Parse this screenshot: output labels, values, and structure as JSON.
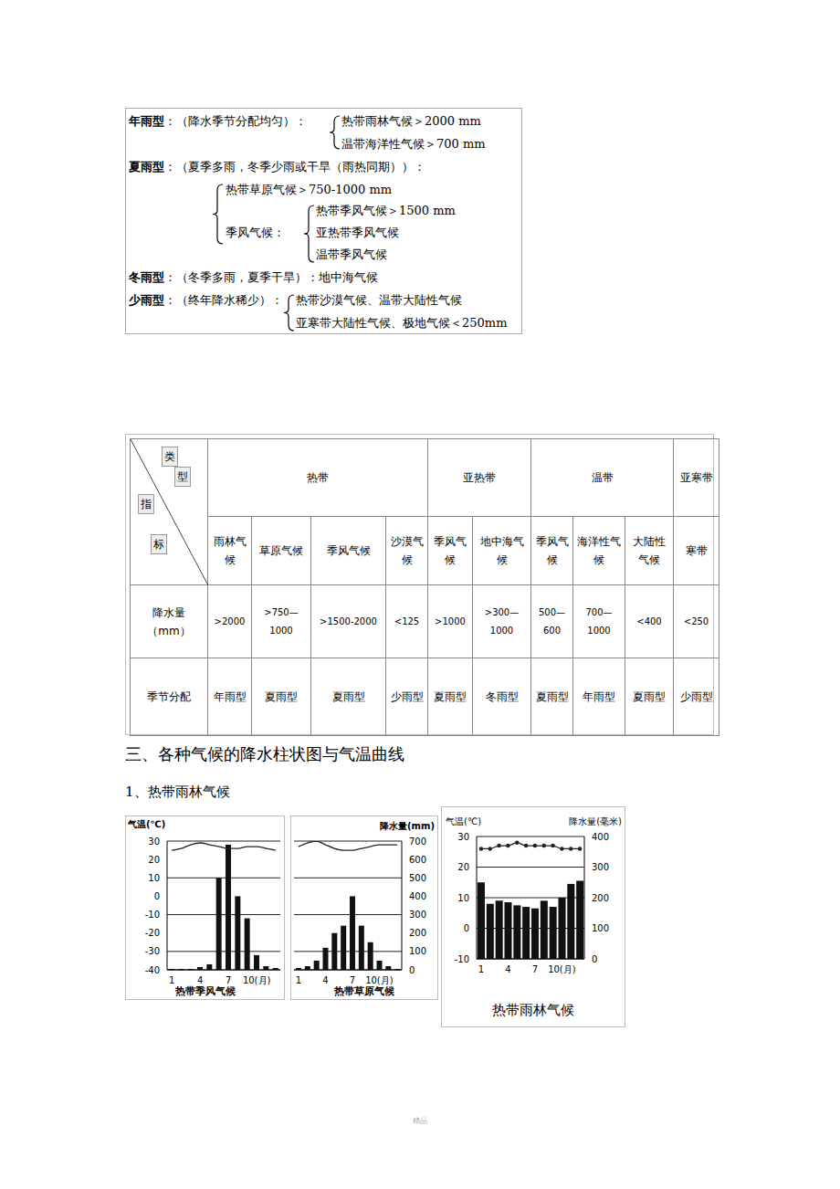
{
  "rain_types": [
    {
      "name": "年雨型",
      "desc": "：（降水季节分配均匀）：",
      "items": [
        "热带雨林气候＞2000 mm",
        "温带海洋性气候＞700 mm"
      ]
    },
    {
      "name": "夏雨型",
      "desc": "：（夏季多雨，冬季少雨或干旱（雨热同期））：",
      "items": [
        "热带草原气候＞750-1000 mm",
        {
          "name": "季风气候：",
          "items": [
            "热带季风气候＞1500 mm",
            "亚热带季风气候",
            "温带季风气候"
          ]
        }
      ]
    },
    {
      "name": "冬雨型",
      "desc": "：（冬季多雨，夏季干旱）：地中海气候",
      "items": []
    },
    {
      "name": "少雨型",
      "desc": "：（终年降水稀少）：",
      "items": [
        "热带沙漠气候、温带大陆性气候",
        "亚寒带大陆性气候、极地气候＜250mm"
      ]
    }
  ],
  "table": {
    "corner": {
      "top": "类型",
      "bottom": "指标"
    },
    "groups": [
      {
        "name": "热带",
        "columns": [
          "雨林气候",
          "草原气候",
          "季风气候",
          "沙漠气候"
        ]
      },
      {
        "name": "亚热带",
        "columns": [
          "季风气候",
          "地中海气候"
        ]
      },
      {
        "name": "温带",
        "columns": [
          "季风气候",
          "海洋性气候",
          "大陆性气候"
        ]
      },
      {
        "name": "亚寒带",
        "columns": [
          "寒带"
        ]
      }
    ],
    "rows": [
      {
        "label": "降水量（mm）",
        "cells": [
          ">2000",
          ">750—1000",
          ">1500-2000",
          "<125",
          ">1000",
          ">300—1000",
          "500—600",
          "700—1000",
          "<400",
          "<250"
        ]
      },
      {
        "label": "季节分配",
        "cells": [
          "年雨型",
          "夏雨型",
          "夏雨型",
          "少雨型",
          "夏雨型",
          "冬雨型",
          "夏雨型",
          "年雨型",
          "夏雨型",
          "少雨型"
        ]
      }
    ]
  },
  "heading": "三、各种气候的降水柱状图与气温曲线",
  "subheading": "1、热带雨林气候",
  "chart_data": [
    {
      "type": "bar",
      "title": "热带季风气候",
      "y_label": "气温(℃)",
      "categories": [
        "1",
        null,
        null,
        "4",
        null,
        null,
        "7",
        null,
        null,
        "10(月)",
        null,
        null
      ],
      "series": [
        {
          "type": "bar",
          "axis": "y2",
          "color": "#111111",
          "values": [
            5,
            5,
            5,
            15,
            30,
            500,
            680,
            400,
            280,
            80,
            20,
            10
          ]
        },
        {
          "type": "line",
          "color": "#222222",
          "marker": "none",
          "values": [
            25,
            26,
            28,
            29,
            28,
            27,
            26,
            26,
            27,
            27,
            26,
            25
          ]
        }
      ],
      "ylim": [
        -40,
        30
      ],
      "yticks": [
        -40,
        -30,
        -20,
        -10,
        0,
        10,
        20,
        30
      ],
      "y2lim": [
        0,
        700
      ],
      "grid": true
    },
    {
      "type": "bar",
      "title": "热带草原气候",
      "y2_label": "降水量(mm)",
      "categories": [
        "1",
        null,
        null,
        "4",
        null,
        null,
        "7",
        null,
        null,
        "10(月)",
        null,
        null
      ],
      "series": [
        {
          "type": "bar",
          "axis": "y2",
          "color": "#111111",
          "values": [
            10,
            20,
            50,
            120,
            200,
            240,
            400,
            240,
            150,
            50,
            20,
            5
          ]
        },
        {
          "type": "line",
          "color": "#222222",
          "marker": "none",
          "values": [
            27,
            29,
            30,
            28,
            26,
            25,
            25,
            26,
            27,
            28,
            28,
            28
          ]
        }
      ],
      "ylim": [
        -40,
        30
      ],
      "y2lim": [
        0,
        700
      ],
      "y2ticks": [
        0,
        100,
        200,
        300,
        400,
        500,
        600,
        700
      ],
      "grid": true
    },
    {
      "type": "bar",
      "title": "热带雨林气候",
      "y_label": "气温(℃)",
      "y2_label": "降水量(毫米)",
      "categories": [
        "1",
        null,
        null,
        "4",
        null,
        null,
        "7",
        null,
        null,
        "10(月)",
        null,
        null
      ],
      "series": [
        {
          "type": "bar",
          "axis": "y2",
          "color": "#111111",
          "values": [
            250,
            180,
            190,
            185,
            175,
            170,
            165,
            190,
            170,
            200,
            245,
            255
          ]
        },
        {
          "type": "line",
          "color": "#222222",
          "marker": "circle",
          "values": [
            26,
            26,
            27,
            27,
            28,
            27,
            27,
            27,
            27,
            26,
            26,
            26
          ]
        }
      ],
      "ylim": [
        -10,
        30
      ],
      "yticks": [
        -10,
        0,
        10,
        20,
        30
      ],
      "y2lim": [
        0,
        400
      ],
      "y2ticks": [
        0,
        100,
        200,
        300,
        400
      ],
      "grid": true
    }
  ],
  "footer": "精品"
}
